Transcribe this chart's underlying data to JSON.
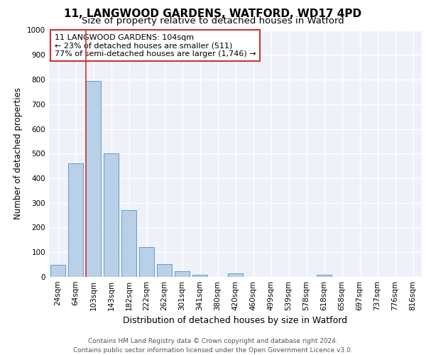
{
  "title_line1": "11, LANGWOOD GARDENS, WATFORD, WD17 4PD",
  "title_line2": "Size of property relative to detached houses in Watford",
  "xlabel": "Distribution of detached houses by size in Watford",
  "ylabel": "Number of detached properties",
  "categories": [
    "24sqm",
    "64sqm",
    "103sqm",
    "143sqm",
    "182sqm",
    "222sqm",
    "262sqm",
    "301sqm",
    "341sqm",
    "380sqm",
    "420sqm",
    "460sqm",
    "499sqm",
    "539sqm",
    "578sqm",
    "618sqm",
    "658sqm",
    "697sqm",
    "737sqm",
    "776sqm",
    "816sqm"
  ],
  "values": [
    50,
    460,
    795,
    500,
    270,
    120,
    53,
    22,
    10,
    0,
    13,
    0,
    0,
    0,
    0,
    10,
    0,
    0,
    0,
    0,
    0
  ],
  "bar_color": "#b8d0e8",
  "bar_edge_color": "#6699cc",
  "vline_x_index": 2,
  "vline_color": "#cc3333",
  "annotation_text": "11 LANGWOOD GARDENS: 104sqm\n← 23% of detached houses are smaller (511)\n77% of semi-detached houses are larger (1,746) →",
  "annotation_box_facecolor": "white",
  "annotation_box_edgecolor": "#cc3333",
  "ylim": [
    0,
    1000
  ],
  "yticks": [
    0,
    100,
    200,
    300,
    400,
    500,
    600,
    700,
    800,
    900,
    1000
  ],
  "footnote": "Contains HM Land Registry data © Crown copyright and database right 2024.\nContains public sector information licensed under the Open Government Licence v3.0.",
  "bg_color": "#eef2f8",
  "grid_color": "white",
  "title_fontsize": 11,
  "subtitle_fontsize": 9.5,
  "ylabel_fontsize": 8.5,
  "xlabel_fontsize": 9,
  "tick_fontsize": 7.5,
  "annotation_fontsize": 8,
  "footnote_fontsize": 6.5
}
